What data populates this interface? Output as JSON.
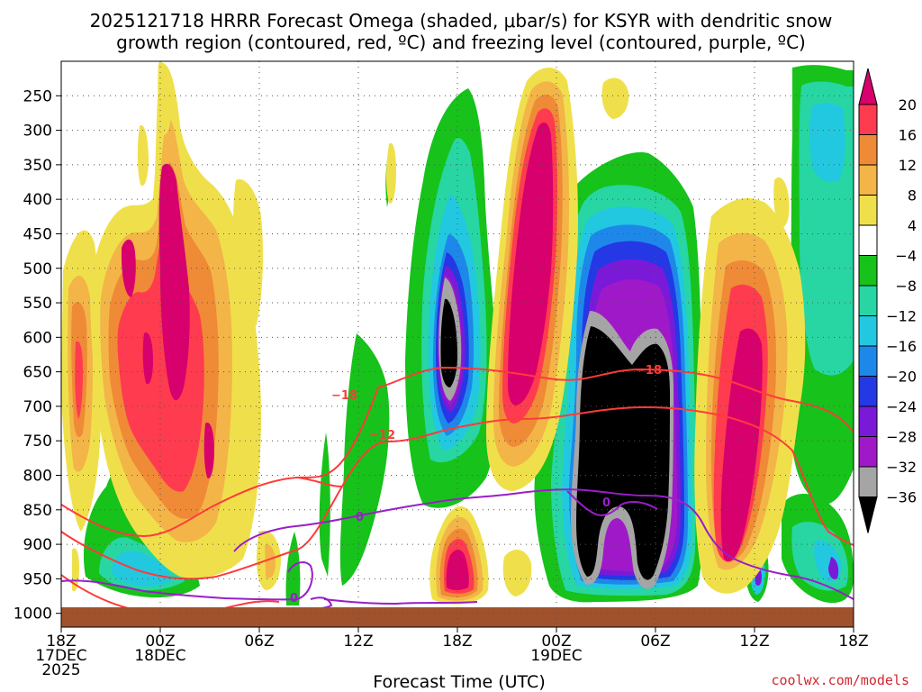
{
  "chart_data": {
    "type": "heatmap",
    "title_lines": [
      "2025121718 HRRR Forecast Omega (shaded, μbar/s) for KSYR with dendritic snow",
      "growth region (contoured, red, ºC) and freezing level (contoured, purple, ºC)"
    ],
    "xlabel": "Forecast Time (UTC)",
    "x_ticks": [
      {
        "hour": 0,
        "lines": [
          "18Z",
          "17DEC",
          "2025"
        ]
      },
      {
        "hour": 6,
        "lines": [
          "00Z",
          "18DEC"
        ]
      },
      {
        "hour": 12,
        "lines": [
          "06Z"
        ]
      },
      {
        "hour": 18,
        "lines": [
          "12Z"
        ]
      },
      {
        "hour": 24,
        "lines": [
          "18Z"
        ]
      },
      {
        "hour": 30,
        "lines": [
          "00Z",
          "19DEC"
        ]
      },
      {
        "hour": 36,
        "lines": [
          "06Z"
        ]
      },
      {
        "hour": 42,
        "lines": [
          "12Z"
        ]
      },
      {
        "hour": 48,
        "lines": [
          "18Z"
        ]
      }
    ],
    "xlim": [
      0,
      48
    ],
    "ylabel": "",
    "y_ticks": [
      250,
      300,
      350,
      400,
      450,
      500,
      550,
      600,
      650,
      700,
      750,
      800,
      850,
      900,
      950,
      1000
    ],
    "ylim": [
      1020,
      200
    ],
    "colorbar": {
      "labels": [
        "20",
        "16",
        "12",
        "8",
        "4",
        "−4",
        "−8",
        "−12",
        "−16",
        "−20",
        "−24",
        "−28",
        "−32",
        "−36"
      ],
      "colors": [
        "#d8006c",
        "#ff3b4f",
        "#ef8a36",
        "#f3b547",
        "#efe04b",
        "#ffffff",
        "#17c21b",
        "#27d6a3",
        "#22c8e0",
        "#1e88ea",
        "#2438e6",
        "#7a1ad8",
        "#a019c8",
        "#a5a5a5",
        "#000000"
      ]
    },
    "contours": [
      {
        "name": "dgz_minus18",
        "label": "−18",
        "color": "#ff3b3b",
        "kind": "dendritic growth"
      },
      {
        "name": "dgz_minus12",
        "label": "−12",
        "color": "#ff3b3b",
        "kind": "dendritic growth"
      },
      {
        "name": "freezing_level",
        "label": "0",
        "color": "#9a1ec8",
        "kind": "freezing level"
      }
    ],
    "grid": true,
    "credit": "coolwx.com/models"
  }
}
